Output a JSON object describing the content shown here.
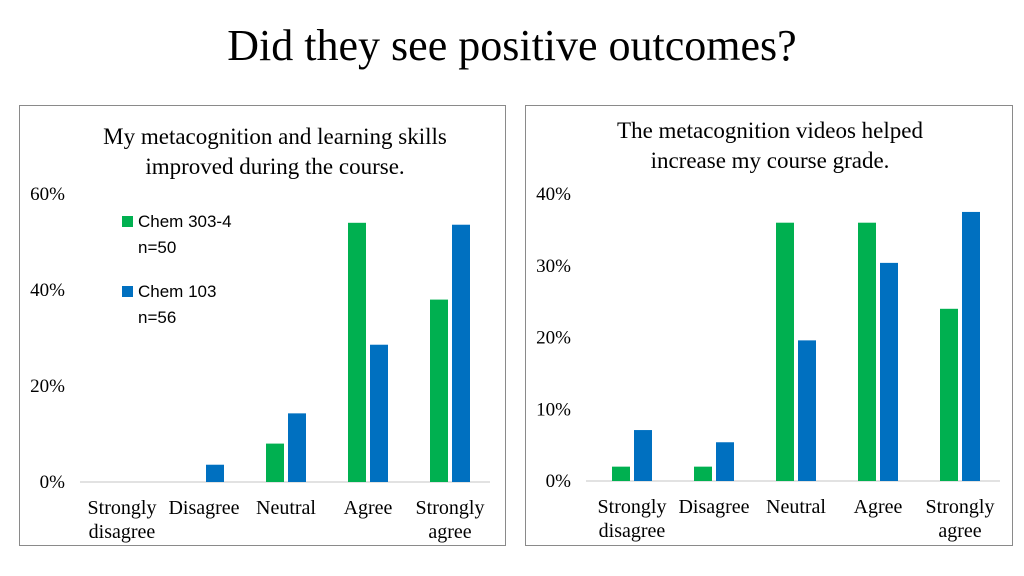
{
  "slide": {
    "title": "Did they see positive outcomes?"
  },
  "colors": {
    "series_a": "#00b050",
    "series_b": "#0070c0",
    "axis": "#d9d9d9"
  },
  "chart_data": [
    {
      "type": "bar",
      "title": [
        "My metacognition and learning skills",
        "improved during the course."
      ],
      "categories": [
        [
          "Strongly",
          "disagree"
        ],
        [
          "Disagree"
        ],
        [
          "Neutral"
        ],
        [
          "Agree"
        ],
        [
          "Strongly",
          "agree"
        ]
      ],
      "series": [
        {
          "name": [
            "Chem 303-4",
            "n=50"
          ],
          "values": [
            0,
            0,
            8,
            54,
            38
          ]
        },
        {
          "name": [
            "Chem 103",
            "n=56"
          ],
          "values": [
            0,
            3.6,
            14.3,
            28.6,
            53.6
          ]
        }
      ],
      "ylim": [
        0,
        60
      ],
      "yticks": [
        0,
        20,
        40,
        60
      ],
      "ytick_labels": [
        "0%",
        "20%",
        "40%",
        "60%"
      ],
      "legend": "upper-left",
      "grid": false
    },
    {
      "type": "bar",
      "title": [
        "The metacognition videos helped",
        "increase my course grade."
      ],
      "categories": [
        [
          "Strongly",
          "disagree"
        ],
        [
          "Disagree"
        ],
        [
          "Neutral"
        ],
        [
          "Agree"
        ],
        [
          "Strongly",
          "agree"
        ]
      ],
      "series": [
        {
          "name": [
            "Chem 303-4",
            "n=50"
          ],
          "values": [
            2,
            2,
            36,
            36,
            24
          ]
        },
        {
          "name": [
            "Chem 103",
            "n=56"
          ],
          "values": [
            7.1,
            5.4,
            19.6,
            30.4,
            37.5
          ]
        }
      ],
      "ylim": [
        0,
        40
      ],
      "yticks": [
        0,
        10,
        20,
        30,
        40
      ],
      "ytick_labels": [
        "0%",
        "10%",
        "20%",
        "30%",
        "40%"
      ],
      "legend": "none",
      "grid": false
    }
  ]
}
